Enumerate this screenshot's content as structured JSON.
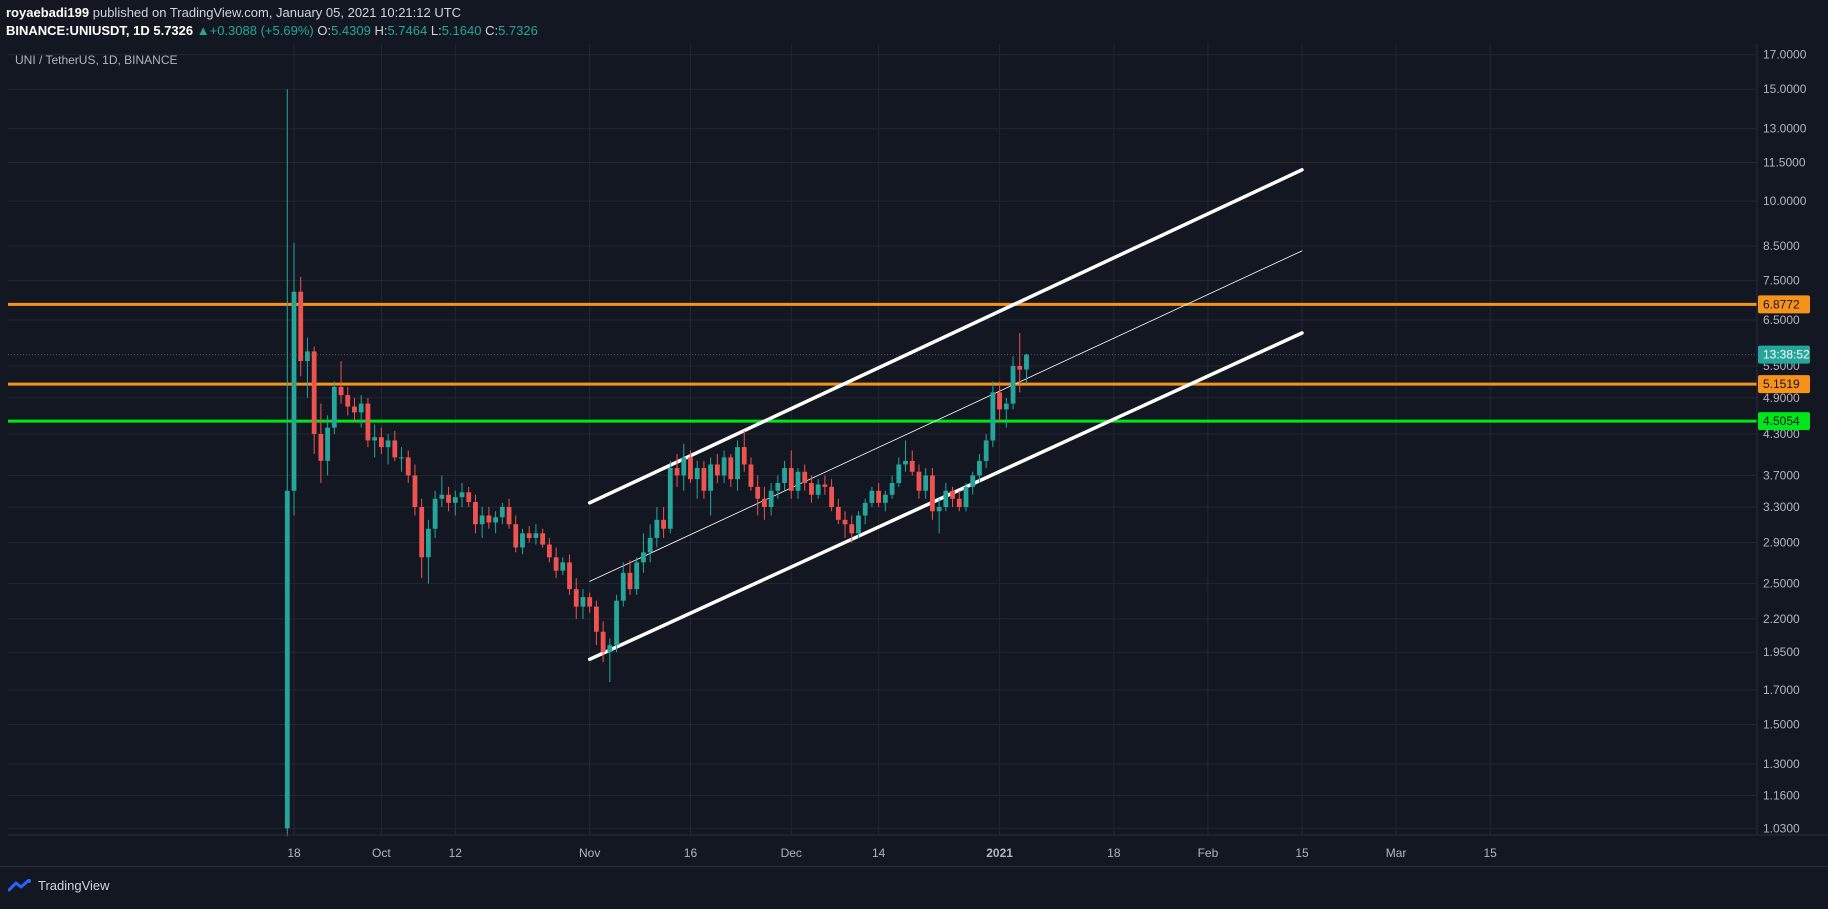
{
  "header": {
    "author": "royaebadi199",
    "published_text": "published on TradingView.com, January 05, 2021 10:21:12 UTC",
    "symbol": "BINANCE:UNIUSDT, 1D",
    "last": "5.7326",
    "change_arrow": "▲",
    "change": "+0.3088 (+5.69%)",
    "o_label": "O:",
    "o_value": "5.4309",
    "h_label": "H:",
    "h_value": "5.7464",
    "l_label": "L:",
    "l_value": "5.1640",
    "c_label": "C:",
    "c_value": "5.7326"
  },
  "footer": {
    "brand": "TradingView"
  },
  "colors": {
    "background": "#131722",
    "grid": "#242733",
    "up": "#26a69a",
    "down": "#ef5350",
    "orange": "#f7931a",
    "green": "#00e61a",
    "channel": "#ffffff"
  },
  "chart_data": {
    "type": "candlestick",
    "legend": "UNI / TetherUS, 1D, BINANCE",
    "y_scale": "log",
    "ylim": [
      0.98,
      17.8
    ],
    "y_ticks": [
      "17.0000",
      "15.0000",
      "13.0000",
      "11.5000",
      "10.0000",
      "8.5000",
      "7.5000",
      "6.5000",
      "5.5000",
      "4.9000",
      "4.3000",
      "3.7000",
      "3.3000",
      "2.9000",
      "2.5000",
      "2.2000",
      "1.9500",
      "1.7000",
      "1.5000",
      "1.3000",
      "1.1600",
      "1.0300"
    ],
    "x_ticks": [
      {
        "label": "18",
        "date": "2020-09-18"
      },
      {
        "label": "Oct",
        "date": "2020-10-01"
      },
      {
        "label": "12",
        "date": "2020-10-12"
      },
      {
        "label": "Nov",
        "date": "2020-11-01"
      },
      {
        "label": "16",
        "date": "2020-11-16"
      },
      {
        "label": "Dec",
        "date": "2020-12-01"
      },
      {
        "label": "14",
        "date": "2020-12-14"
      },
      {
        "label": "2021",
        "date": "2021-01-01"
      },
      {
        "label": "18",
        "date": "2021-01-18"
      },
      {
        "label": "Feb",
        "date": "2021-02-01"
      },
      {
        "label": "15",
        "date": "2021-02-15"
      },
      {
        "label": "Mar",
        "date": "2021-03-01"
      },
      {
        "label": "15",
        "date": "2021-03-15"
      }
    ],
    "candles": [
      [
        "2020-09-17",
        1.03,
        15.0,
        1.0,
        3.5
      ],
      [
        "2020-09-18",
        3.5,
        8.6,
        3.2,
        7.2
      ],
      [
        "2020-09-19",
        7.2,
        7.6,
        5.3,
        5.6
      ],
      [
        "2020-09-20",
        5.6,
        6.1,
        4.9,
        5.8
      ],
      [
        "2020-09-21",
        5.8,
        5.9,
        4.0,
        4.3
      ],
      [
        "2020-09-22",
        4.3,
        4.8,
        3.6,
        3.9
      ],
      [
        "2020-09-23",
        3.9,
        4.6,
        3.7,
        4.4
      ],
      [
        "2020-09-24",
        4.4,
        5.2,
        4.3,
        5.1
      ],
      [
        "2020-09-25",
        5.1,
        5.6,
        4.8,
        4.95
      ],
      [
        "2020-09-26",
        4.95,
        5.1,
        4.6,
        4.75
      ],
      [
        "2020-09-27",
        4.75,
        4.9,
        4.5,
        4.65
      ],
      [
        "2020-09-28",
        4.65,
        4.95,
        4.4,
        4.8
      ],
      [
        "2020-09-29",
        4.8,
        4.9,
        4.1,
        4.2
      ],
      [
        "2020-09-30",
        4.2,
        4.45,
        3.95,
        4.25
      ],
      [
        "2020-10-01",
        4.25,
        4.4,
        4.0,
        4.1
      ],
      [
        "2020-10-02",
        4.1,
        4.3,
        3.85,
        4.2
      ],
      [
        "2020-10-03",
        4.2,
        4.35,
        3.9,
        3.95
      ],
      [
        "2020-10-04",
        3.95,
        4.1,
        3.75,
        3.95
      ],
      [
        "2020-10-05",
        3.95,
        4.05,
        3.6,
        3.7
      ],
      [
        "2020-10-06",
        3.7,
        3.85,
        3.2,
        3.3
      ],
      [
        "2020-10-07",
        3.3,
        3.4,
        2.55,
        2.75
      ],
      [
        "2020-10-08",
        2.75,
        3.15,
        2.5,
        3.05
      ],
      [
        "2020-10-09",
        3.05,
        3.5,
        2.95,
        3.4
      ],
      [
        "2020-10-10",
        3.4,
        3.7,
        3.3,
        3.45
      ],
      [
        "2020-10-11",
        3.45,
        3.55,
        3.25,
        3.35
      ],
      [
        "2020-10-12",
        3.35,
        3.5,
        3.2,
        3.42
      ],
      [
        "2020-10-13",
        3.42,
        3.6,
        3.3,
        3.48
      ],
      [
        "2020-10-14",
        3.48,
        3.55,
        3.3,
        3.36
      ],
      [
        "2020-10-15",
        3.36,
        3.45,
        3.0,
        3.1
      ],
      [
        "2020-10-16",
        3.1,
        3.3,
        2.95,
        3.2
      ],
      [
        "2020-10-17",
        3.2,
        3.3,
        3.05,
        3.12
      ],
      [
        "2020-10-18",
        3.12,
        3.25,
        3.0,
        3.18
      ],
      [
        "2020-10-19",
        3.18,
        3.35,
        3.1,
        3.3
      ],
      [
        "2020-10-20",
        3.3,
        3.4,
        3.05,
        3.1
      ],
      [
        "2020-10-21",
        3.1,
        3.2,
        2.8,
        2.85
      ],
      [
        "2020-10-22",
        2.85,
        3.05,
        2.78,
        3.0
      ],
      [
        "2020-10-23",
        3.0,
        3.08,
        2.9,
        2.95
      ],
      [
        "2020-10-24",
        2.95,
        3.1,
        2.88,
        3.0
      ],
      [
        "2020-10-25",
        3.0,
        3.05,
        2.85,
        2.88
      ],
      [
        "2020-10-26",
        2.88,
        2.95,
        2.7,
        2.75
      ],
      [
        "2020-10-27",
        2.75,
        2.85,
        2.55,
        2.62
      ],
      [
        "2020-10-28",
        2.62,
        2.75,
        2.58,
        2.7
      ],
      [
        "2020-10-29",
        2.7,
        2.78,
        2.4,
        2.45
      ],
      [
        "2020-10-30",
        2.45,
        2.55,
        2.2,
        2.3
      ],
      [
        "2020-10-31",
        2.3,
        2.45,
        2.2,
        2.38
      ],
      [
        "2020-11-01",
        2.38,
        2.42,
        2.25,
        2.3
      ],
      [
        "2020-11-02",
        2.3,
        2.35,
        2.0,
        2.1
      ],
      [
        "2020-11-03",
        2.1,
        2.18,
        1.88,
        1.95
      ],
      [
        "2020-11-04",
        1.95,
        2.05,
        1.75,
        2.0
      ],
      [
        "2020-11-05",
        2.0,
        2.4,
        1.95,
        2.35
      ],
      [
        "2020-11-06",
        2.35,
        2.7,
        2.3,
        2.6
      ],
      [
        "2020-11-07",
        2.6,
        2.72,
        2.4,
        2.45
      ],
      [
        "2020-11-08",
        2.45,
        2.75,
        2.4,
        2.7
      ],
      [
        "2020-11-09",
        2.7,
        3.0,
        2.6,
        2.8
      ],
      [
        "2020-11-10",
        2.8,
        3.1,
        2.7,
        2.95
      ],
      [
        "2020-11-11",
        2.95,
        3.3,
        2.85,
        3.15
      ],
      [
        "2020-11-12",
        3.15,
        3.3,
        2.95,
        3.05
      ],
      [
        "2020-11-13",
        3.05,
        3.9,
        3.0,
        3.8
      ],
      [
        "2020-11-14",
        3.8,
        4.0,
        3.55,
        3.7
      ],
      [
        "2020-11-15",
        3.7,
        4.15,
        3.5,
        3.95
      ],
      [
        "2020-11-16",
        3.95,
        4.05,
        3.6,
        3.65
      ],
      [
        "2020-11-17",
        3.65,
        3.9,
        3.4,
        3.8
      ],
      [
        "2020-11-18",
        3.8,
        3.9,
        3.4,
        3.5
      ],
      [
        "2020-11-19",
        3.5,
        3.95,
        3.2,
        3.85
      ],
      [
        "2020-11-20",
        3.85,
        4.0,
        3.6,
        3.7
      ],
      [
        "2020-11-21",
        3.7,
        4.05,
        3.6,
        3.95
      ],
      [
        "2020-11-22",
        3.95,
        4.0,
        3.55,
        3.65
      ],
      [
        "2020-11-23",
        3.65,
        4.2,
        3.5,
        4.1
      ],
      [
        "2020-11-24",
        4.1,
        4.35,
        3.75,
        3.85
      ],
      [
        "2020-11-25",
        3.85,
        3.95,
        3.5,
        3.55
      ],
      [
        "2020-11-26",
        3.55,
        3.7,
        3.2,
        3.4
      ],
      [
        "2020-11-27",
        3.4,
        3.55,
        3.15,
        3.3
      ],
      [
        "2020-11-28",
        3.3,
        3.6,
        3.2,
        3.5
      ],
      [
        "2020-11-29",
        3.5,
        3.7,
        3.4,
        3.6
      ],
      [
        "2020-11-30",
        3.6,
        3.9,
        3.5,
        3.8
      ],
      [
        "2020-12-01",
        3.8,
        4.05,
        3.4,
        3.5
      ],
      [
        "2020-12-02",
        3.5,
        3.8,
        3.4,
        3.75
      ],
      [
        "2020-12-03",
        3.75,
        3.85,
        3.5,
        3.6
      ],
      [
        "2020-12-04",
        3.6,
        3.7,
        3.35,
        3.45
      ],
      [
        "2020-12-05",
        3.45,
        3.65,
        3.4,
        3.58
      ],
      [
        "2020-12-06",
        3.58,
        3.7,
        3.45,
        3.55
      ],
      [
        "2020-12-07",
        3.55,
        3.65,
        3.25,
        3.3
      ],
      [
        "2020-12-08",
        3.3,
        3.4,
        3.1,
        3.15
      ],
      [
        "2020-12-09",
        3.15,
        3.25,
        2.95,
        3.1
      ],
      [
        "2020-12-10",
        3.1,
        3.2,
        2.9,
        3.0
      ],
      [
        "2020-12-11",
        3.0,
        3.25,
        2.95,
        3.2
      ],
      [
        "2020-12-12",
        3.2,
        3.4,
        3.1,
        3.35
      ],
      [
        "2020-12-13",
        3.35,
        3.55,
        3.3,
        3.5
      ],
      [
        "2020-12-14",
        3.5,
        3.6,
        3.3,
        3.35
      ],
      [
        "2020-12-15",
        3.35,
        3.5,
        3.25,
        3.45
      ],
      [
        "2020-12-16",
        3.45,
        3.7,
        3.4,
        3.6
      ],
      [
        "2020-12-17",
        3.6,
        3.95,
        3.55,
        3.85
      ],
      [
        "2020-12-18",
        3.85,
        4.2,
        3.75,
        3.9
      ],
      [
        "2020-12-19",
        3.9,
        4.05,
        3.7,
        3.75
      ],
      [
        "2020-12-20",
        3.75,
        3.85,
        3.4,
        3.5
      ],
      [
        "2020-12-21",
        3.5,
        3.8,
        3.4,
        3.7
      ],
      [
        "2020-12-22",
        3.7,
        3.8,
        3.15,
        3.25
      ],
      [
        "2020-12-23",
        3.25,
        3.4,
        3.0,
        3.3
      ],
      [
        "2020-12-24",
        3.3,
        3.6,
        3.25,
        3.5
      ],
      [
        "2020-12-25",
        3.5,
        3.55,
        3.3,
        3.4
      ],
      [
        "2020-12-26",
        3.4,
        3.5,
        3.25,
        3.3
      ],
      [
        "2020-12-27",
        3.3,
        3.6,
        3.25,
        3.55
      ],
      [
        "2020-12-28",
        3.55,
        3.75,
        3.45,
        3.7
      ],
      [
        "2020-12-29",
        3.7,
        4.0,
        3.6,
        3.9
      ],
      [
        "2020-12-30",
        3.9,
        4.3,
        3.8,
        4.2
      ],
      [
        "2020-12-31",
        4.2,
        5.2,
        4.1,
        5.0
      ],
      [
        "2021-01-01",
        5.0,
        5.2,
        4.5,
        4.7
      ],
      [
        "2021-01-02",
        4.7,
        4.9,
        4.4,
        4.8
      ],
      [
        "2021-01-03",
        4.8,
        5.7,
        4.7,
        5.5
      ],
      [
        "2021-01-04",
        5.5,
        6.2,
        5.0,
        5.43
      ],
      [
        "2021-01-05",
        5.43,
        5.75,
        5.16,
        5.73
      ]
    ],
    "horizontal_levels": [
      {
        "value": 6.8772,
        "label": "6.8772",
        "color": "#f7931a"
      },
      {
        "value": 5.1519,
        "label": "5.1519",
        "color": "#f7931a"
      },
      {
        "value": 4.5054,
        "label": "4.5054",
        "color": "#00e61a"
      }
    ],
    "countdown": {
      "value": 5.7326,
      "label": "13:38:52",
      "color": "#26a69a"
    },
    "channel": {
      "upper": [
        [
          "2020-11-01",
          3.35
        ],
        [
          "2021-02-15",
          11.2
        ]
      ],
      "lower": [
        [
          "2020-11-01",
          1.9
        ],
        [
          "2021-02-15",
          6.2
        ]
      ],
      "mid": [
        [
          "2020-11-01",
          2.52
        ],
        [
          "2021-02-15",
          8.35
        ]
      ]
    }
  }
}
